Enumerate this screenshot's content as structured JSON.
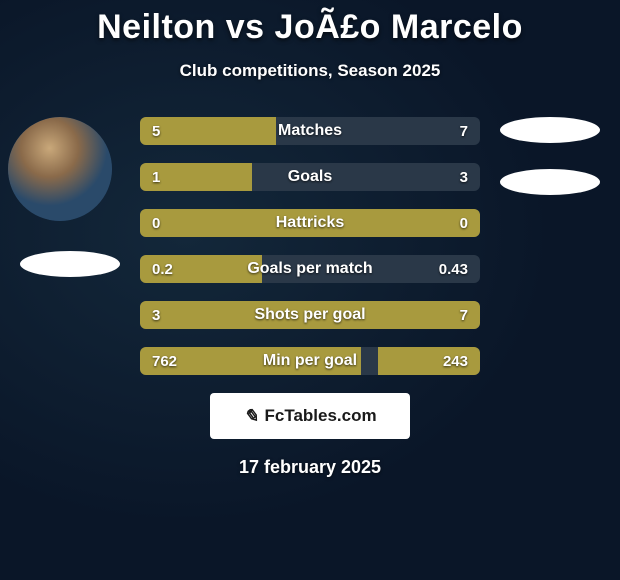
{
  "title": "Neilton vs JoÃ£o Marcelo",
  "subtitle": "Club competitions, Season 2025",
  "date": "17 february 2025",
  "logo": {
    "text": "FcTables.com"
  },
  "colors": {
    "background": "#0a1628",
    "bar_fill": "#a89a3e",
    "bar_track": "#2a3848",
    "text": "#ffffff",
    "logo_bg": "#ffffff",
    "logo_fg": "#1a1a1a"
  },
  "bar_style": {
    "height": 28,
    "border_radius": 6,
    "gap": 18,
    "label_fontsize": 16,
    "value_fontsize": 15,
    "font_weight": 700
  },
  "stats": [
    {
      "label": "Matches",
      "left_val": "5",
      "right_val": "7",
      "left_pct": 40,
      "right_pct": 0
    },
    {
      "label": "Goals",
      "left_val": "1",
      "right_val": "3",
      "left_pct": 33,
      "right_pct": 0
    },
    {
      "label": "Hattricks",
      "left_val": "0",
      "right_val": "0",
      "left_pct": 100,
      "right_pct": 0
    },
    {
      "label": "Goals per match",
      "left_val": "0.2",
      "right_val": "0.43",
      "left_pct": 36,
      "right_pct": 0
    },
    {
      "label": "Shots per goal",
      "left_val": "3",
      "right_val": "7",
      "left_pct": 100,
      "right_pct": 0
    },
    {
      "label": "Min per goal",
      "left_val": "762",
      "right_val": "243",
      "left_pct": 65,
      "right_pct": 30
    }
  ]
}
